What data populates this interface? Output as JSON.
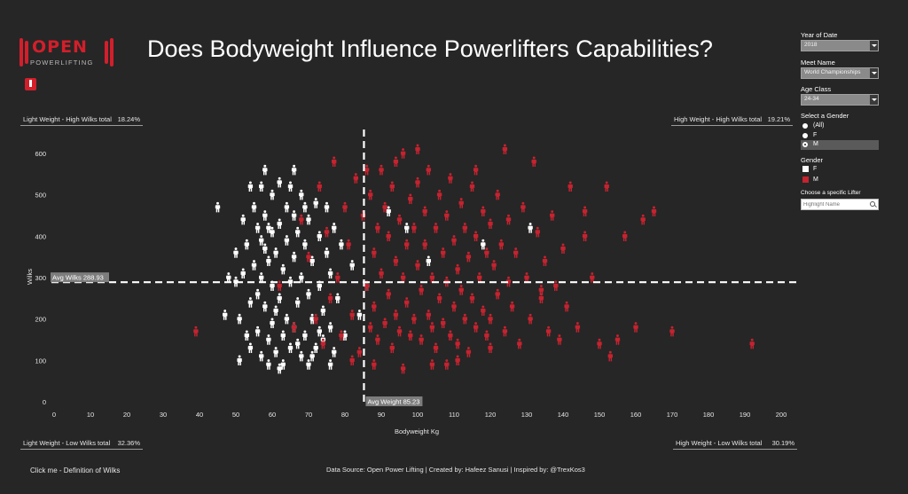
{
  "title": "Does Bodyweight Influence Powerlifters Capabilities?",
  "logo": {
    "text_top": "OPEN",
    "text_bottom": "POWERLIFTING"
  },
  "quadrants": {
    "top_left": {
      "label": "Light Weight - High Wilks total",
      "value": "18.24%"
    },
    "top_right": {
      "label": "High Weight - High Wilks total",
      "value": "19.21%"
    },
    "bottom_left": {
      "label": "Light Weight - Low Wilks total",
      "value": "32.36%"
    },
    "bottom_right": {
      "label": "High Weight - Low Wilks total",
      "value": "30.19%"
    }
  },
  "filters": {
    "year": {
      "label": "Year of Date",
      "value": "2018"
    },
    "meet": {
      "label": "Meet Name",
      "value": "World Championships"
    },
    "age": {
      "label": "Age Class",
      "value": "24-34"
    },
    "gender_select": {
      "label": "Select a Gender",
      "options": [
        "(All)",
        "F",
        "M"
      ],
      "selected": "M"
    },
    "gender_legend": {
      "label": "Gender",
      "items": [
        {
          "name": "F",
          "color": "#ffffff"
        },
        {
          "name": "M",
          "color": "#c4232f"
        }
      ]
    },
    "lifter": {
      "label": "Choose a specific Lifter",
      "placeholder": "Highlight Name"
    }
  },
  "footer": {
    "source": "Data Source: Open Power Lifting | Created by: Hafeez Sanusi | Inspired by: @TrexKos3",
    "click": "Click  me - Definition of Wilks"
  },
  "chart_data": {
    "type": "scatter",
    "xlabel": "Bodyweight Kg",
    "ylabel": "Wilks",
    "xlim": [
      0,
      205
    ],
    "ylim": [
      0,
      640
    ],
    "x_ticks": [
      0,
      10,
      20,
      30,
      40,
      50,
      60,
      70,
      80,
      90,
      100,
      110,
      120,
      130,
      140,
      150,
      160,
      170,
      180,
      190,
      200
    ],
    "y_ticks": [
      0,
      100,
      200,
      300,
      400,
      500,
      600
    ],
    "reference_lines": {
      "avg_wilks": {
        "label": "Avg Wilks",
        "value": 288.93
      },
      "avg_weight": {
        "label": "Avg Weight",
        "value": 85.23
      }
    },
    "marker": "person",
    "series": [
      {
        "name": "F",
        "color": "#ffffff",
        "points": [
          [
            45,
            470
          ],
          [
            48,
            300
          ],
          [
            50,
            360
          ],
          [
            50,
            290
          ],
          [
            51,
            200
          ],
          [
            51,
            100
          ],
          [
            52,
            440
          ],
          [
            53,
            380
          ],
          [
            54,
            240
          ],
          [
            54,
            130
          ],
          [
            55,
            470
          ],
          [
            55,
            330
          ],
          [
            56,
            420
          ],
          [
            56,
            260
          ],
          [
            56,
            170
          ],
          [
            57,
            520
          ],
          [
            57,
            390
          ],
          [
            57,
            300
          ],
          [
            57,
            110
          ],
          [
            58,
            560
          ],
          [
            58,
            450
          ],
          [
            58,
            230
          ],
          [
            59,
            340
          ],
          [
            59,
            150
          ],
          [
            59,
            90
          ],
          [
            60,
            500
          ],
          [
            60,
            410
          ],
          [
            60,
            280
          ],
          [
            60,
            190
          ],
          [
            61,
            360
          ],
          [
            61,
            120
          ],
          [
            62,
            530
          ],
          [
            62,
            430
          ],
          [
            62,
            250
          ],
          [
            63,
            320
          ],
          [
            63,
            160
          ],
          [
            63,
            90
          ],
          [
            64,
            470
          ],
          [
            64,
            390
          ],
          [
            64,
            200
          ],
          [
            65,
            520
          ],
          [
            65,
            290
          ],
          [
            65,
            130
          ],
          [
            66,
            450
          ],
          [
            66,
            350
          ],
          [
            66,
            180
          ],
          [
            67,
            410
          ],
          [
            67,
            240
          ],
          [
            68,
            500
          ],
          [
            68,
            300
          ],
          [
            68,
            110
          ],
          [
            69,
            380
          ],
          [
            69,
            160
          ],
          [
            70,
            440
          ],
          [
            70,
            260
          ],
          [
            70,
            90
          ],
          [
            71,
            340
          ],
          [
            71,
            200
          ],
          [
            72,
            480
          ],
          [
            72,
            130
          ],
          [
            73,
            400
          ],
          [
            73,
            280
          ],
          [
            74,
            220
          ],
          [
            74,
            150
          ],
          [
            75,
            360
          ],
          [
            75,
            470
          ],
          [
            76,
            310
          ],
          [
            76,
            180
          ],
          [
            77,
            420
          ],
          [
            77,
            120
          ],
          [
            78,
            250
          ],
          [
            79,
            380
          ],
          [
            80,
            160
          ],
          [
            82,
            330
          ],
          [
            84,
            210
          ],
          [
            47,
            210
          ],
          [
            52,
            310
          ],
          [
            54,
            520
          ],
          [
            58,
            370
          ],
          [
            61,
            220
          ],
          [
            66,
            560
          ],
          [
            69,
            470
          ],
          [
            71,
            110
          ],
          [
            76,
            90
          ],
          [
            86,
            280
          ],
          [
            92,
            460
          ],
          [
            97,
            420
          ],
          [
            103,
            340
          ],
          [
            118,
            380
          ],
          [
            131,
            420
          ],
          [
            53,
            160
          ],
          [
            62,
            80
          ],
          [
            67,
            140
          ],
          [
            73,
            170
          ],
          [
            59,
            420
          ]
        ]
      },
      {
        "name": "M",
        "color": "#c4232f",
        "points": [
          [
            39,
            170
          ],
          [
            62,
            280
          ],
          [
            66,
            180
          ],
          [
            68,
            440
          ],
          [
            70,
            350
          ],
          [
            72,
            200
          ],
          [
            73,
            520
          ],
          [
            74,
            140
          ],
          [
            75,
            410
          ],
          [
            76,
            250
          ],
          [
            77,
            580
          ],
          [
            78,
            300
          ],
          [
            79,
            160
          ],
          [
            80,
            470
          ],
          [
            81,
            380
          ],
          [
            82,
            210
          ],
          [
            83,
            540
          ],
          [
            84,
            120
          ],
          [
            85,
            450
          ],
          [
            86,
            280
          ],
          [
            87,
            180
          ],
          [
            87,
            500
          ],
          [
            88,
            360
          ],
          [
            88,
            230
          ],
          [
            89,
            420
          ],
          [
            89,
            150
          ],
          [
            90,
            560
          ],
          [
            90,
            310
          ],
          [
            91,
            190
          ],
          [
            91,
            470
          ],
          [
            92,
            400
          ],
          [
            92,
            260
          ],
          [
            93,
            130
          ],
          [
            93,
            520
          ],
          [
            94,
            340
          ],
          [
            94,
            210
          ],
          [
            95,
            440
          ],
          [
            95,
            170
          ],
          [
            96,
            600
          ],
          [
            96,
            300
          ],
          [
            97,
            380
          ],
          [
            97,
            240
          ],
          [
            98,
            160
          ],
          [
            98,
            490
          ],
          [
            99,
            420
          ],
          [
            99,
            200
          ],
          [
            100,
            530
          ],
          [
            100,
            330
          ],
          [
            101,
            270
          ],
          [
            101,
            150
          ],
          [
            102,
            460
          ],
          [
            102,
            380
          ],
          [
            103,
            210
          ],
          [
            103,
            560
          ],
          [
            104,
            300
          ],
          [
            104,
            180
          ],
          [
            105,
            420
          ],
          [
            105,
            130
          ],
          [
            106,
            500
          ],
          [
            106,
            250
          ],
          [
            107,
            360
          ],
          [
            107,
            190
          ],
          [
            108,
            450
          ],
          [
            108,
            290
          ],
          [
            109,
            160
          ],
          [
            109,
            540
          ],
          [
            110,
            390
          ],
          [
            110,
            230
          ],
          [
            111,
            320
          ],
          [
            111,
            140
          ],
          [
            112,
            480
          ],
          [
            112,
            270
          ],
          [
            113,
            420
          ],
          [
            113,
            200
          ],
          [
            114,
            350
          ],
          [
            114,
            120
          ],
          [
            115,
            520
          ],
          [
            115,
            250
          ],
          [
            116,
            400
          ],
          [
            116,
            180
          ],
          [
            117,
            300
          ],
          [
            118,
            460
          ],
          [
            118,
            220
          ],
          [
            119,
            360
          ],
          [
            119,
            160
          ],
          [
            120,
            430
          ],
          [
            120,
            200
          ],
          [
            121,
            330
          ],
          [
            122,
            500
          ],
          [
            122,
            260
          ],
          [
            123,
            380
          ],
          [
            124,
            170
          ],
          [
            125,
            440
          ],
          [
            125,
            290
          ],
          [
            126,
            230
          ],
          [
            127,
            360
          ],
          [
            128,
            140
          ],
          [
            129,
            470
          ],
          [
            130,
            300
          ],
          [
            131,
            200
          ],
          [
            132,
            580
          ],
          [
            133,
            410
          ],
          [
            134,
            250
          ],
          [
            135,
            340
          ],
          [
            136,
            170
          ],
          [
            137,
            450
          ],
          [
            138,
            280
          ],
          [
            139,
            150
          ],
          [
            140,
            370
          ],
          [
            141,
            230
          ],
          [
            142,
            520
          ],
          [
            144,
            180
          ],
          [
            146,
            400
          ],
          [
            148,
            300
          ],
          [
            150,
            140
          ],
          [
            152,
            520
          ],
          [
            153,
            110
          ],
          [
            155,
            150
          ],
          [
            157,
            400
          ],
          [
            160,
            180
          ],
          [
            162,
            440
          ],
          [
            165,
            460
          ],
          [
            170,
            170
          ],
          [
            192,
            140
          ],
          [
            116,
            560
          ],
          [
            94,
            580
          ],
          [
            100,
            610
          ],
          [
            86,
            560
          ],
          [
            104,
            90
          ],
          [
            111,
            100
          ],
          [
            124,
            610
          ],
          [
            134,
            270
          ],
          [
            146,
            460
          ],
          [
            82,
            100
          ],
          [
            88,
            90
          ],
          [
            96,
            80
          ],
          [
            120,
            130
          ],
          [
            108,
            90
          ]
        ]
      }
    ]
  }
}
